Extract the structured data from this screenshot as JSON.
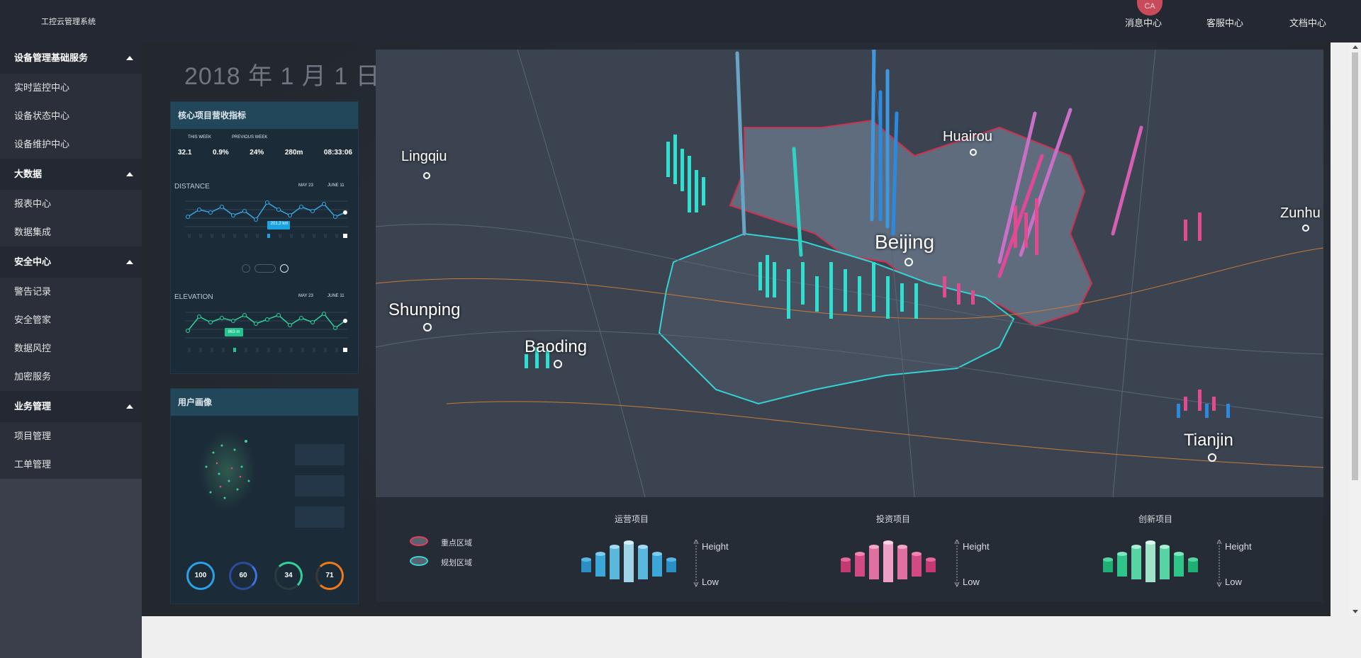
{
  "app": {
    "title": "工控云管理系统",
    "avatar_text": "CA"
  },
  "topnav": {
    "items": [
      "消息中心",
      "客服中心",
      "文档中心"
    ]
  },
  "sidebar": {
    "groups": [
      {
        "label": "设备管理基础服务",
        "items": [
          "实时监控中心",
          "设备状态中心",
          "设备维护中心"
        ]
      },
      {
        "label": "大数据",
        "items": [
          "报表中心",
          "数据集成"
        ]
      },
      {
        "label": "安全中心",
        "items": [
          "警告记录",
          "安全管家",
          "数据风控",
          "加密服务"
        ]
      },
      {
        "label": "业务管理",
        "items": [
          "项目管理",
          "工单管理"
        ]
      }
    ]
  },
  "dashboard": {
    "date": "2018 年 1 月 1 日",
    "kpi_card": {
      "title": "核心项目营收指标",
      "compare": {
        "this_week": "THIS WEEK",
        "previous_week": "PREVIOUS WEEK"
      },
      "stats": [
        "32.1",
        "0.9%",
        "24%",
        "280m",
        "08:33:06"
      ],
      "distance": {
        "label": "DISTANCE",
        "from": "MAY 23",
        "to": "JUNE 11",
        "value": "201.2 km"
      },
      "elevation": {
        "label": "ELEVATION",
        "from": "MAY 23",
        "to": "JUNE 11",
        "value": "863 m"
      }
    },
    "user_card": {
      "title": "用户画像",
      "gauges": [
        "100",
        "60",
        "34",
        "71"
      ]
    },
    "map": {
      "cities": [
        "Lingqiu",
        "Huairou",
        "Zunhu",
        "Beijing",
        "Shunping",
        "Baoding",
        "Tianjin"
      ]
    },
    "legend": {
      "areas": [
        "重点区域",
        "规划区域"
      ],
      "groups": [
        {
          "title": "运营项目",
          "high": "Height",
          "low": "Low",
          "color": "#34a7d8"
        },
        {
          "title": "投资项目",
          "high": "Height",
          "low": "Low",
          "color": "#e0508a"
        },
        {
          "title": "创新项目",
          "high": "Height",
          "low": "Low",
          "color": "#3fd8a0"
        }
      ]
    }
  }
}
